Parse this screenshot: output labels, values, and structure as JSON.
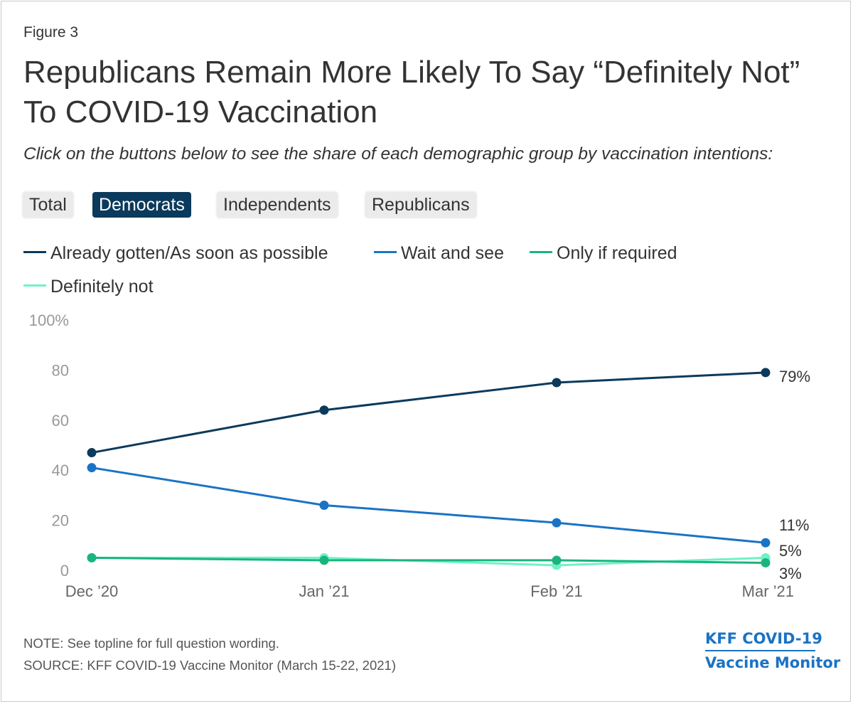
{
  "figure_label": "Figure 3",
  "title": "Republicans Remain More Likely To Say “Definitely Not” To COVID-19 Vaccination",
  "subtitle": "Click on the buttons below to see the share of each demographic group by vaccination intentions:",
  "buttons": [
    {
      "label": "Total",
      "active": false
    },
    {
      "label": "Democrats",
      "active": true
    },
    {
      "label": "Independents",
      "active": false
    },
    {
      "label": "Republicans",
      "active": false
    }
  ],
  "colors": {
    "already": "#0b3a5c",
    "wait": "#1a73c4",
    "required": "#1ab57c",
    "definitely_not": "#6ff2c8",
    "axis_text": "#999999"
  },
  "chart_data": {
    "type": "line",
    "categories": [
      "Dec ’20",
      "Jan ’21",
      "Feb ’21",
      "Mar ’21"
    ],
    "ylim": [
      0,
      100
    ],
    "yticks": [
      0,
      20,
      40,
      60,
      80,
      100
    ],
    "ytick_labels": [
      "0",
      "20",
      "40",
      "60",
      "80",
      "100%"
    ],
    "grid": false,
    "legend_placement": "top-left",
    "series": [
      {
        "name": "Already gotten/As soon as possible",
        "values": [
          47,
          64,
          75,
          79
        ],
        "end_label": "79%"
      },
      {
        "name": "Wait and see",
        "values": [
          41,
          26,
          19,
          11
        ],
        "end_label": "11%"
      },
      {
        "name": "Only if required",
        "values": [
          5,
          4,
          4,
          3
        ],
        "end_label": "3%"
      },
      {
        "name": "Definitely not",
        "values": [
          5,
          5,
          2,
          5
        ],
        "end_label": "5%"
      }
    ]
  },
  "note": "NOTE: See topline for full question wording.",
  "source": "SOURCE: KFF COVID-19 Vaccine Monitor (March 15-22, 2021)",
  "brand": {
    "line1": "KFF COVID-19",
    "line2": "Vaccine Monitor"
  }
}
